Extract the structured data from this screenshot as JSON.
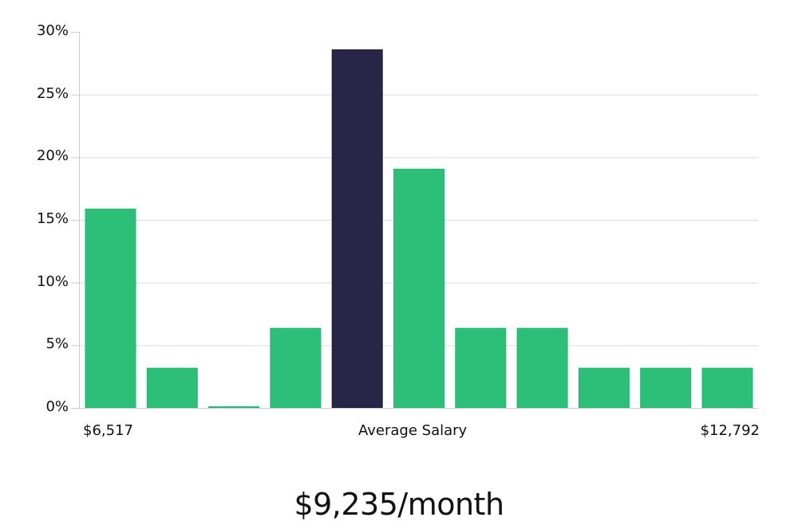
{
  "chart_data": {
    "type": "bar",
    "title": "",
    "xlabel": "Average Salary",
    "ylabel": "",
    "ylim": [
      0,
      30
    ],
    "yticks": [
      "0%",
      "5%",
      "10%",
      "15%",
      "20%",
      "25%",
      "30%"
    ],
    "grid": true,
    "categories": [
      "bin1",
      "bin2",
      "bin3",
      "bin4",
      "bin5",
      "bin6",
      "bin7",
      "bin8",
      "bin9",
      "bin10",
      "bin11"
    ],
    "values": [
      15.87,
      3.17,
      0.0,
      6.35,
      28.57,
      19.05,
      6.35,
      6.35,
      3.17,
      3.17,
      3.17
    ],
    "highlight_index": 4,
    "x_min_label": "$6,517",
    "x_max_label": "$12,792",
    "colors": {
      "bar": "#2bbf78",
      "highlight": "#282546",
      "grid": "#dcdcdc",
      "axis": "#cccccc"
    }
  },
  "labels": {
    "x_min": "$6,517",
    "x_center": "Average Salary",
    "x_max": "$12,792",
    "headline": "$9,235/month"
  }
}
